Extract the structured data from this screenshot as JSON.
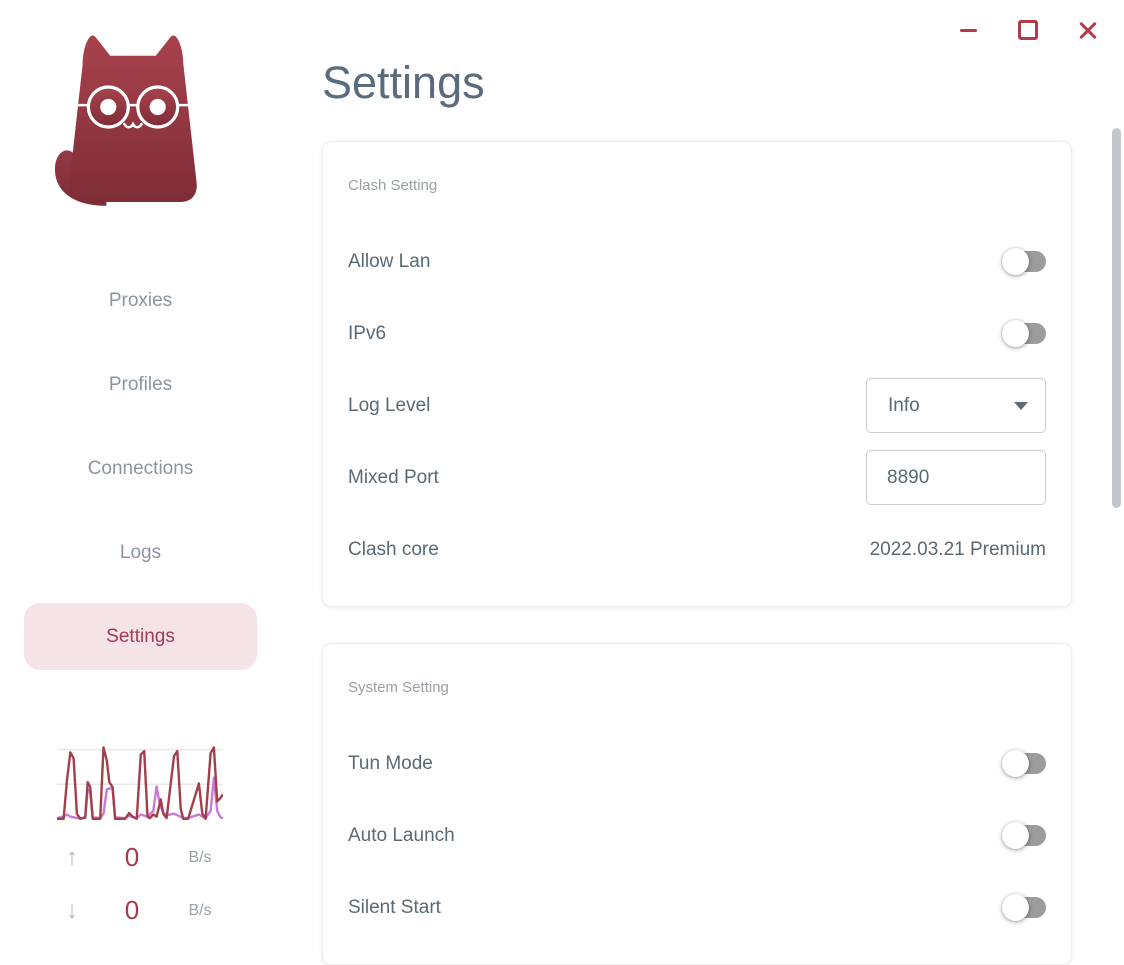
{
  "window": {
    "controls": {
      "minimize": "minimize",
      "maximize": "maximize",
      "close": "close"
    }
  },
  "sidebar": {
    "logo": "clash-cat-logo",
    "items": [
      {
        "label": "Proxies",
        "active": false
      },
      {
        "label": "Profiles",
        "active": false
      },
      {
        "label": "Connections",
        "active": false
      },
      {
        "label": "Logs",
        "active": false
      },
      {
        "label": "Settings",
        "active": true
      }
    ],
    "traffic": {
      "up": {
        "value": "0",
        "unit": "B/s"
      },
      "down": {
        "value": "0",
        "unit": "B/s"
      }
    }
  },
  "page": {
    "title": "Settings"
  },
  "cards": [
    {
      "section_title": "Clash Setting",
      "rows": [
        {
          "label": "Allow Lan",
          "type": "toggle",
          "state": "off"
        },
        {
          "label": "IPv6",
          "type": "toggle",
          "state": "off"
        },
        {
          "label": "Log Level",
          "type": "select",
          "value": "Info"
        },
        {
          "label": "Mixed Port",
          "type": "input",
          "value": "8890"
        },
        {
          "label": "Clash core",
          "type": "text",
          "value": "2022.03.21 Premium"
        }
      ]
    },
    {
      "section_title": "System Setting",
      "rows": [
        {
          "label": "Tun Mode",
          "type": "toggle",
          "state": "off"
        },
        {
          "label": "Auto Launch",
          "type": "toggle",
          "state": "off"
        },
        {
          "label": "Silent Start",
          "type": "toggle",
          "state": "off"
        }
      ]
    }
  ],
  "chart_data": {
    "type": "line",
    "title": "traffic-sparkline",
    "xlabel": "",
    "ylabel": "",
    "legend": false,
    "grid": true,
    "gridline_values": [
      97,
      49
    ],
    "ylim": [
      0,
      100
    ],
    "series": [
      {
        "name": "upload",
        "color": "#a33f4b",
        "points": [
          [
            0,
            1
          ],
          [
            4,
            1
          ],
          [
            6,
            55
          ],
          [
            8,
            93
          ],
          [
            10,
            85
          ],
          [
            12,
            8
          ],
          [
            14,
            1
          ],
          [
            17,
            3
          ],
          [
            18.5,
            52
          ],
          [
            20,
            45
          ],
          [
            21.5,
            1
          ],
          [
            26,
            1
          ],
          [
            28,
            100
          ],
          [
            30,
            82
          ],
          [
            31.5,
            52
          ],
          [
            33.5,
            45
          ],
          [
            35,
            1
          ],
          [
            41,
            1
          ],
          [
            43.5,
            9
          ],
          [
            45.5,
            4
          ],
          [
            48,
            1
          ],
          [
            50.5,
            90
          ],
          [
            52.5,
            95
          ],
          [
            54.5,
            4
          ],
          [
            56,
            2
          ],
          [
            58,
            7
          ],
          [
            60,
            4
          ],
          [
            62.5,
            28
          ],
          [
            64,
            8
          ],
          [
            66,
            2
          ],
          [
            70.5,
            88
          ],
          [
            72.5,
            95
          ],
          [
            74.5,
            15
          ],
          [
            76,
            1
          ],
          [
            79,
            1
          ],
          [
            85.5,
            50
          ],
          [
            87.5,
            8
          ],
          [
            89.5,
            1
          ],
          [
            92.5,
            92
          ],
          [
            94.5,
            100
          ],
          [
            96.5,
            25
          ],
          [
            98.5,
            30
          ],
          [
            100,
            35
          ]
        ]
      },
      {
        "name": "download",
        "color": "#c77bd4",
        "points": [
          [
            0,
            2
          ],
          [
            4,
            4
          ],
          [
            6,
            7
          ],
          [
            8,
            4
          ],
          [
            12,
            2
          ],
          [
            17,
            2
          ],
          [
            18.5,
            42
          ],
          [
            20,
            38
          ],
          [
            21.5,
            3
          ],
          [
            26,
            2
          ],
          [
            28,
            8
          ],
          [
            30,
            42
          ],
          [
            33.5,
            44
          ],
          [
            35,
            3
          ],
          [
            41,
            2
          ],
          [
            43.5,
            5
          ],
          [
            48,
            2
          ],
          [
            50.5,
            7
          ],
          [
            54.5,
            4
          ],
          [
            58,
            12
          ],
          [
            60,
            46
          ],
          [
            62,
            20
          ],
          [
            64,
            10
          ],
          [
            66,
            6
          ],
          [
            70.5,
            8
          ],
          [
            72.5,
            6
          ],
          [
            76,
            2
          ],
          [
            79,
            2
          ],
          [
            85.5,
            7
          ],
          [
            87.5,
            4
          ],
          [
            89.5,
            2
          ],
          [
            92.5,
            12
          ],
          [
            94.5,
            58
          ],
          [
            96.5,
            12
          ],
          [
            98.5,
            3
          ],
          [
            100,
            2
          ]
        ]
      }
    ]
  },
  "colors": {
    "brand_red": "#a33f4b",
    "cat_gradient_top": "#a8424d",
    "cat_gradient_bottom": "#7e2d37",
    "nav_active_bg": "#f6e3e7",
    "nav_active_text": "#a23c52",
    "nav_text": "#8b94a3",
    "title_text": "#5a6b7d",
    "toggle_track_off": "#9c9c9c",
    "window_controls": "#b23c49",
    "chart_purple": "#c77bd4",
    "scrollbar": "#c3c7cd"
  }
}
